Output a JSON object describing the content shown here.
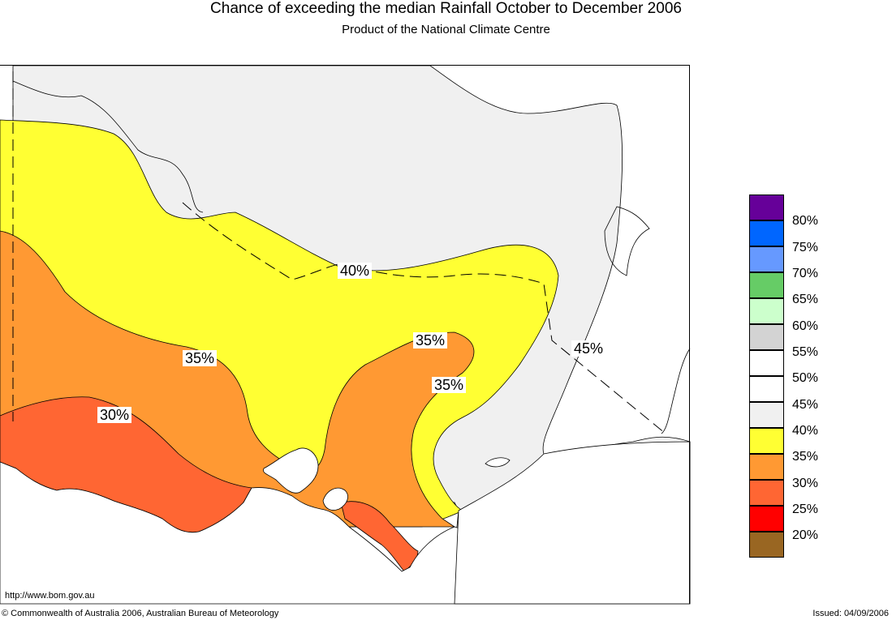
{
  "header": {
    "title": "Chance of exceeding the median Rainfall October to December 2006",
    "subtitle": "Product of the National Climate Centre"
  },
  "colors": {
    "pct_20": "#996622",
    "pct_25": "#ff0000",
    "pct_30": "#ff6633",
    "pct_35": "#ff9933",
    "pct_40": "#ffff33",
    "pct_45": "#f0f0f0",
    "pct_50": "#ffffff",
    "pct_55": "#ffffff",
    "pct_60": "#d3d3d3",
    "pct_65": "#ccffcc",
    "pct_70": "#66cc66",
    "pct_75": "#6699ff",
    "pct_80": "#0066ff",
    "above_80": "#660099",
    "sea": "#ffffff",
    "coastline": "#000000",
    "border_line": "#000000"
  },
  "legend": {
    "items": [
      {
        "label": "80%",
        "color": "#660099"
      },
      {
        "label": "75%",
        "color": "#0066ff"
      },
      {
        "label": "70%",
        "color": "#6699ff"
      },
      {
        "label": "65%",
        "color": "#66cc66"
      },
      {
        "label": "60%",
        "color": "#ccffcc"
      },
      {
        "label": "55%",
        "color": "#d3d3d3"
      },
      {
        "label": "50%",
        "color": "#ffffff"
      },
      {
        "label": "45%",
        "color": "#ffffff"
      },
      {
        "label": "40%",
        "color": "#f0f0f0"
      },
      {
        "label": "35%",
        "color": "#ffff33"
      },
      {
        "label": "30%",
        "color": "#ff9933"
      },
      {
        "label": "25%",
        "color": "#ff6633"
      },
      {
        "label": "20%",
        "color": "#ff0000"
      }
    ],
    "bottom_color": "#996622"
  },
  "contour_labels": {
    "label_40": "40%",
    "label_45": "45%",
    "label_35_west": "35%",
    "label_35_centre": "35%",
    "label_35_east": "35%",
    "label_30": "30%"
  },
  "footer": {
    "url": "http://www.bom.gov.au",
    "copyright": "© Commonwealth of Australia 2006, Australian Bureau of Meteorology",
    "issued": "Issued: 04/09/2006"
  }
}
